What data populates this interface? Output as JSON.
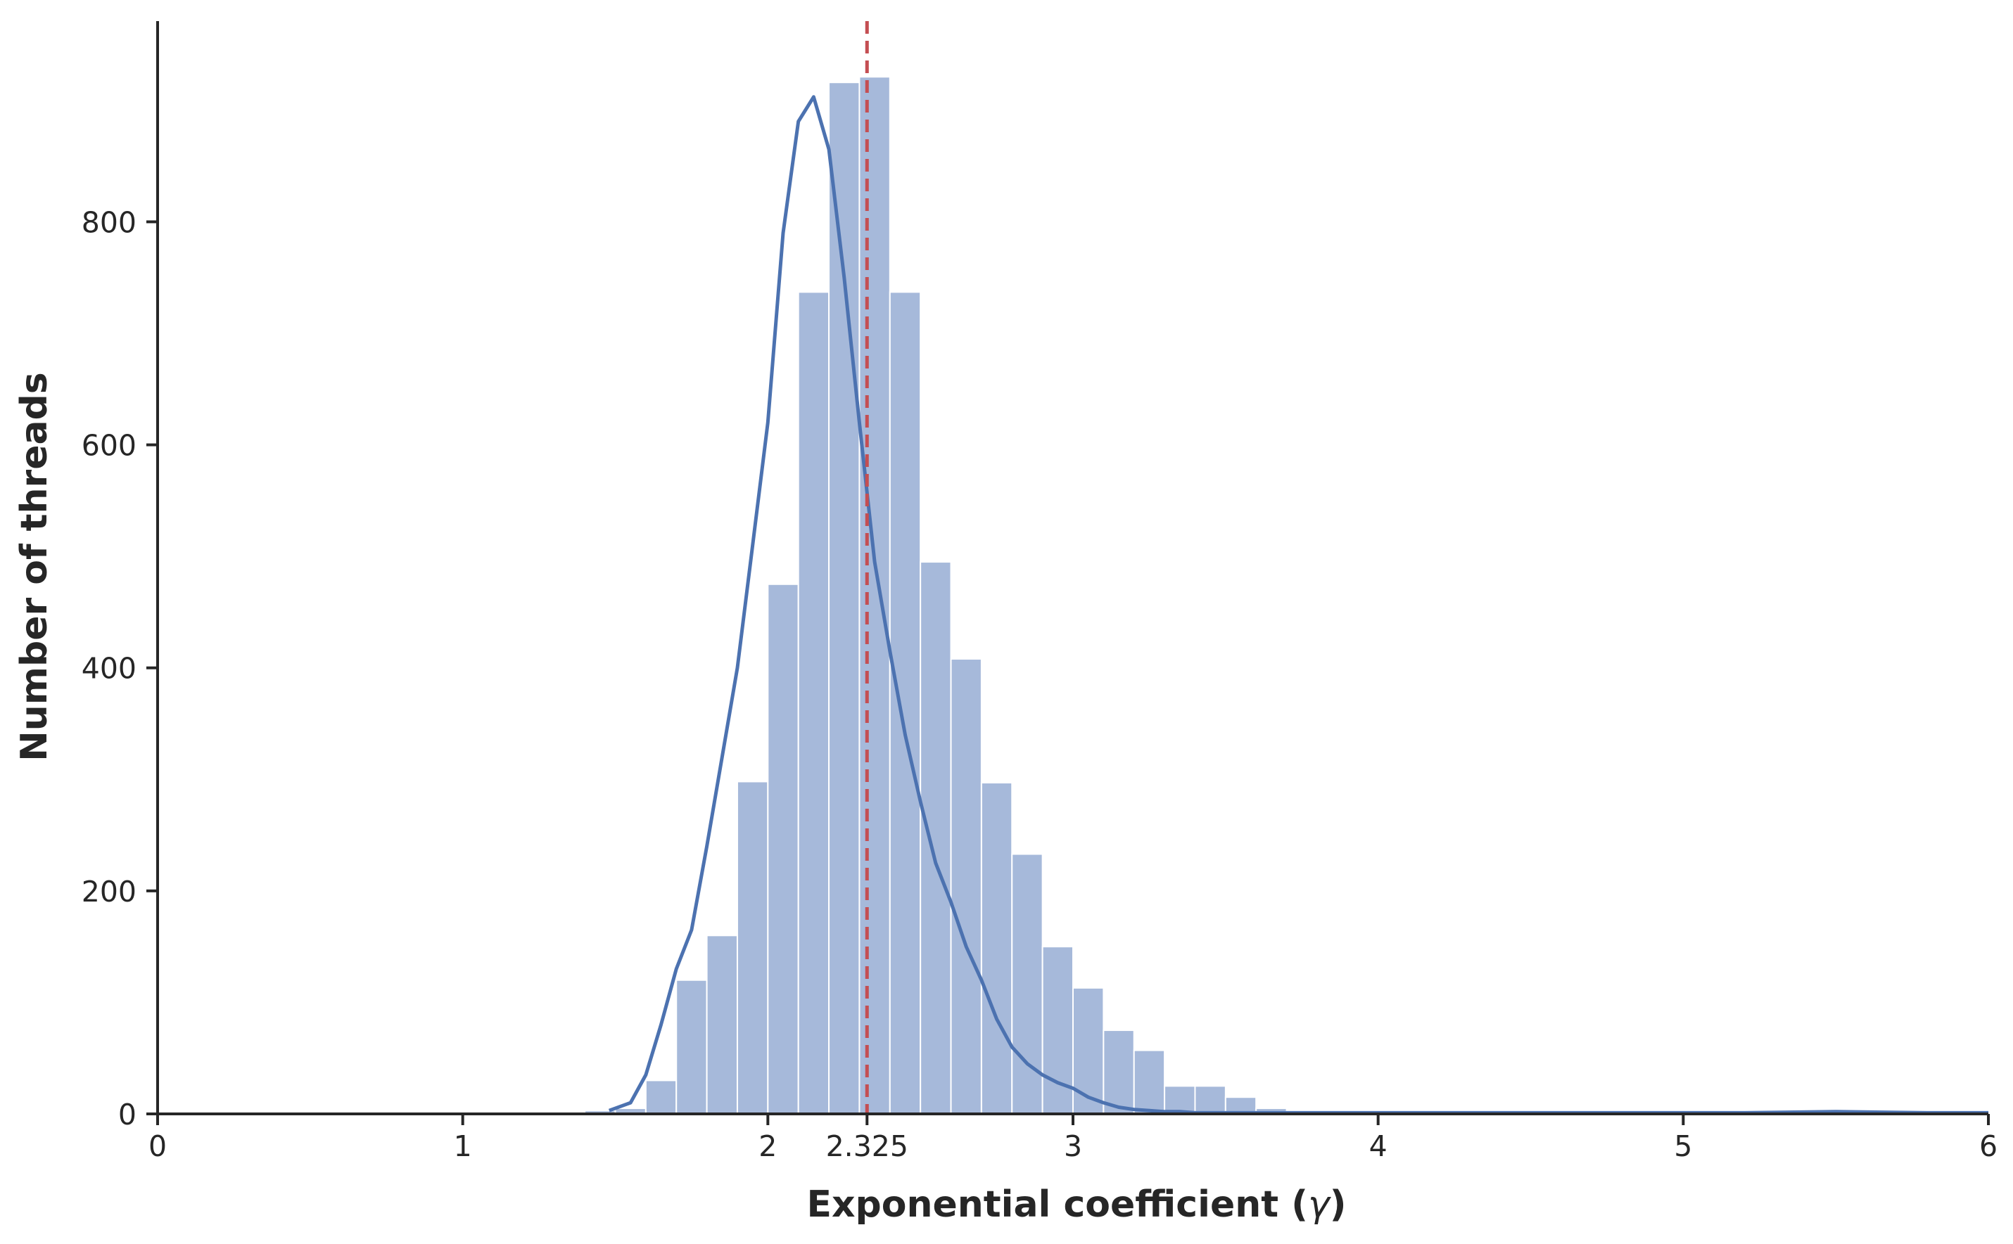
{
  "chart_data": {
    "type": "bar",
    "subtype": "histogram-with-kde",
    "title": "",
    "xlabel": "Exponential coefficient",
    "xlabel_symbol": "γ",
    "ylabel": "Number of threads",
    "xlim": [
      0,
      6
    ],
    "ylim": [
      0,
      980
    ],
    "x_ticks": [
      0,
      1,
      2,
      2.325,
      3,
      4,
      5,
      6
    ],
    "x_tick_labels": [
      "0",
      "1",
      "2",
      "2.325",
      "3",
      "4",
      "5",
      "6"
    ],
    "y_ticks": [
      0,
      200,
      400,
      600,
      800
    ],
    "y_tick_labels": [
      "0",
      "200",
      "400",
      "600",
      "800"
    ],
    "grid": false,
    "legend": "none",
    "bin_width": 0.1,
    "bins": [
      {
        "x0": 1.4,
        "value": 3
      },
      {
        "x0": 1.5,
        "value": 5
      },
      {
        "x0": 1.6,
        "value": 30
      },
      {
        "x0": 1.7,
        "value": 120
      },
      {
        "x0": 1.8,
        "value": 160
      },
      {
        "x0": 1.9,
        "value": 298
      },
      {
        "x0": 2.0,
        "value": 475
      },
      {
        "x0": 2.1,
        "value": 737
      },
      {
        "x0": 2.2,
        "value": 925
      },
      {
        "x0": 2.3,
        "value": 930
      },
      {
        "x0": 2.4,
        "value": 737
      },
      {
        "x0": 2.5,
        "value": 495
      },
      {
        "x0": 2.6,
        "value": 408
      },
      {
        "x0": 2.7,
        "value": 297
      },
      {
        "x0": 2.8,
        "value": 233
      },
      {
        "x0": 2.9,
        "value": 150
      },
      {
        "x0": 3.0,
        "value": 113
      },
      {
        "x0": 3.1,
        "value": 75
      },
      {
        "x0": 3.2,
        "value": 57
      },
      {
        "x0": 3.3,
        "value": 25
      },
      {
        "x0": 3.4,
        "value": 25
      },
      {
        "x0": 3.5,
        "value": 15
      },
      {
        "x0": 3.6,
        "value": 5
      },
      {
        "x0": 3.7,
        "value": 2
      },
      {
        "x0": 3.8,
        "value": 2
      },
      {
        "x0": 3.9,
        "value": 2
      },
      {
        "x0": 4.0,
        "value": 1
      },
      {
        "x0": 4.4,
        "value": 1
      },
      {
        "x0": 5.5,
        "value": 1
      }
    ],
    "kde": {
      "x": [
        1.48,
        1.55,
        1.6,
        1.65,
        1.7,
        1.75,
        1.8,
        1.85,
        1.9,
        1.95,
        2.0,
        2.05,
        2.1,
        2.15,
        2.2,
        2.25,
        2.3,
        2.35,
        2.4,
        2.45,
        2.5,
        2.55,
        2.6,
        2.65,
        2.7,
        2.75,
        2.8,
        2.85,
        2.9,
        2.95,
        3.0,
        3.05,
        3.1,
        3.15,
        3.2,
        3.25,
        3.3,
        3.35,
        3.4,
        3.45,
        3.5,
        3.55,
        3.6,
        3.65,
        3.7,
        3.8,
        3.9,
        4.0,
        4.2,
        4.5,
        4.8,
        5.2,
        5.5,
        5.8,
        6.0
      ],
      "y": [
        3,
        10,
        35,
        80,
        130,
        165,
        240,
        320,
        400,
        510,
        620,
        790,
        890,
        912,
        865,
        750,
        620,
        495,
        415,
        340,
        280,
        225,
        190,
        150,
        120,
        85,
        60,
        45,
        35,
        28,
        23,
        15,
        10,
        6,
        4,
        3,
        2,
        2,
        1,
        1,
        1,
        1,
        1,
        1,
        1,
        1,
        1,
        1,
        1,
        1,
        1,
        1,
        2,
        1,
        1
      ]
    },
    "mean_line": {
      "x": 2.325,
      "style": "dashed",
      "color": "#c44e52"
    },
    "colors": {
      "bar_fill": "#a6b9da",
      "bar_edge": "#ffffff",
      "kde_line": "#4c72b0",
      "axis": "#262626"
    }
  }
}
